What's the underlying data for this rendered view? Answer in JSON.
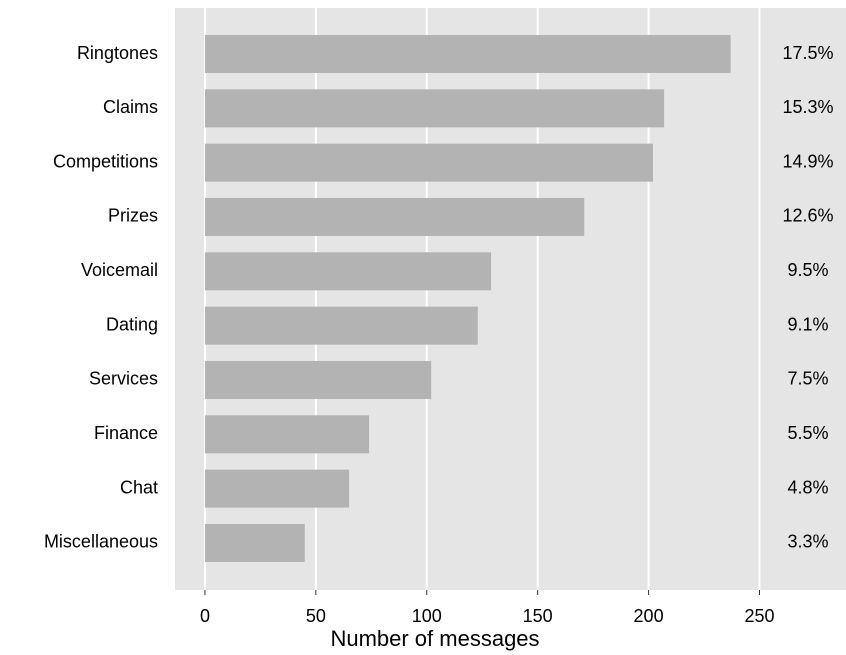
{
  "chart_data": {
    "type": "bar",
    "orientation": "horizontal",
    "x_label": "Number of messages",
    "categories": [
      "Ringtones",
      "Claims",
      "Competitions",
      "Prizes",
      "Voicemail",
      "Dating",
      "Services",
      "Finance",
      "Chat",
      "Miscellaneous"
    ],
    "values": [
      237,
      207,
      202,
      171,
      129,
      123,
      102,
      74,
      65,
      45
    ],
    "percent_labels": [
      "17.5%",
      "15.3%",
      "14.9%",
      "12.6%",
      "9.5%",
      "9.1%",
      "7.5%",
      "5.5%",
      "4.8%",
      "3.3%"
    ],
    "color": "#b3b3b3",
    "xlim": [
      -13.5,
      289
    ],
    "xticks": [
      0,
      50,
      100,
      150,
      200,
      250
    ],
    "grid": true
  }
}
